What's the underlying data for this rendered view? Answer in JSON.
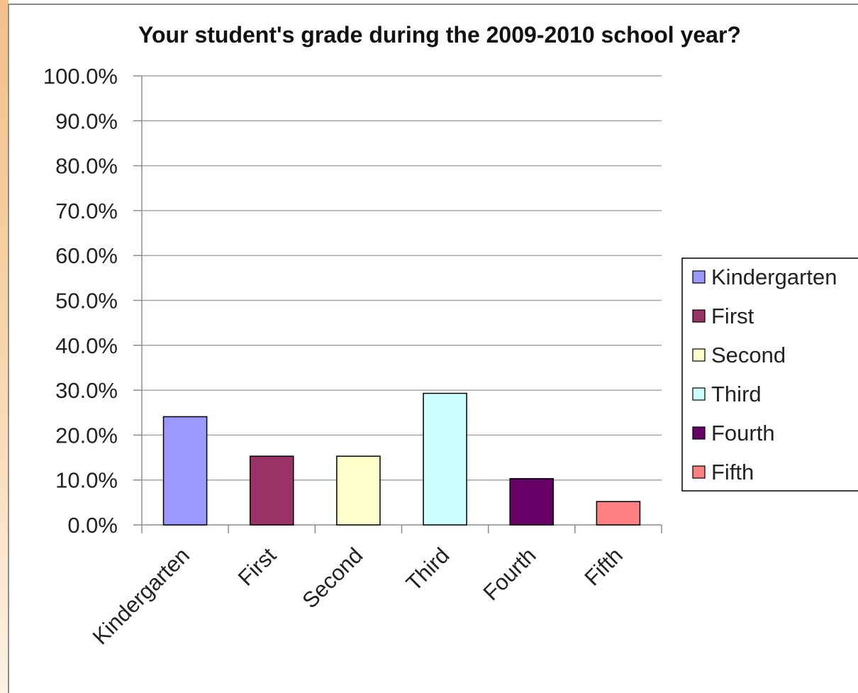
{
  "chart_data": {
    "type": "bar",
    "title": "Your student's grade during the 2009-2010 school year?",
    "xlabel": "",
    "ylabel": "",
    "categories": [
      "Kindergarten",
      "First",
      "Second",
      "Third",
      "Fourth",
      "Fifth"
    ],
    "values": [
      24.1,
      15.3,
      15.3,
      29.3,
      10.3,
      5.2
    ],
    "colors": [
      "#9999ff",
      "#993366",
      "#ffffcc",
      "#ccffff",
      "#660066",
      "#ff8080"
    ],
    "ylim": [
      0,
      100
    ],
    "yticks": [
      "0.0%",
      "10.0%",
      "20.0%",
      "30.0%",
      "40.0%",
      "50.0%",
      "60.0%",
      "70.0%",
      "80.0%",
      "90.0%",
      "100.0%"
    ],
    "grid": true,
    "legend_position": "right",
    "legend": [
      "Kindergarten",
      "First",
      "Second",
      "Third",
      "Fourth",
      "Fifth"
    ]
  }
}
